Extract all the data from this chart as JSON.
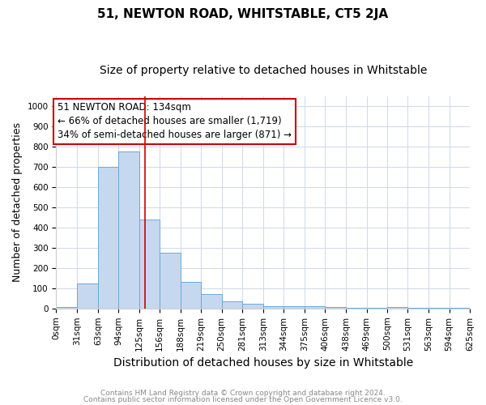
{
  "title": "51, NEWTON ROAD, WHITSTABLE, CT5 2JA",
  "subtitle": "Size of property relative to detached houses in Whitstable",
  "xlabel": "Distribution of detached houses by size in Whitstable",
  "ylabel": "Number of detached properties",
  "footnote1": "Contains HM Land Registry data © Crown copyright and database right 2024.",
  "footnote2": "Contains public sector information licensed under the Open Government Licence v3.0.",
  "bin_edges": [
    0,
    31,
    63,
    94,
    125,
    156,
    188,
    219,
    250,
    281,
    313,
    344,
    375,
    406,
    438,
    469,
    500,
    531,
    563,
    594,
    625
  ],
  "bar_heights": [
    8,
    125,
    700,
    775,
    440,
    275,
    130,
    70,
    37,
    22,
    12,
    12,
    10,
    8,
    2,
    2,
    8,
    2,
    2,
    2
  ],
  "bar_color": "#c5d8f0",
  "bar_edge_color": "#6aaad4",
  "property_size": 134,
  "vline_color": "#cc0000",
  "annotation_line1": "51 NEWTON ROAD: 134sqm",
  "annotation_line2": "← 66% of detached houses are smaller (1,719)",
  "annotation_line3": "34% of semi-detached houses are larger (871) →",
  "annotation_box_color": "#cc0000",
  "annotation_fontsize": 8.5,
  "ylim": [
    0,
    1050
  ],
  "yticks": [
    0,
    100,
    200,
    300,
    400,
    500,
    600,
    700,
    800,
    900,
    1000
  ],
  "title_fontsize": 11,
  "subtitle_fontsize": 10,
  "xlabel_fontsize": 10,
  "ylabel_fontsize": 9,
  "tick_fontsize": 7.5,
  "background_color": "#ffffff",
  "grid_color": "#d0d8e8"
}
